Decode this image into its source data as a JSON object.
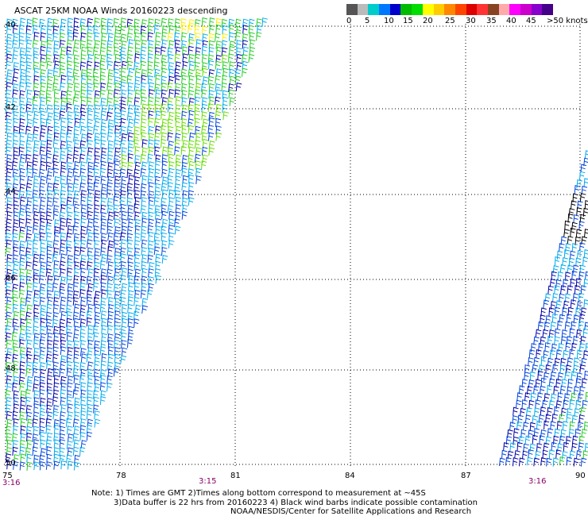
{
  "title": "ASCAT 25KM NOAA Winds 20160223 descending",
  "colorbar": {
    "colors": [
      "#555555",
      "#bbbbbb",
      "#00cccc",
      "#0077ff",
      "#0000cc",
      "#00bb00",
      "#00dd00",
      "#ffff00",
      "#ffcc00",
      "#ff8800",
      "#ff4400",
      "#dd0000",
      "#ff3333",
      "#884422",
      "#ffaaaa",
      "#ff00ff",
      "#cc00cc",
      "#8800cc",
      "#440088"
    ],
    "labels": [
      "0",
      "5",
      "10",
      "15",
      "20",
      "25",
      "30",
      "35",
      "40",
      "45",
      ">50 knots"
    ]
  },
  "map": {
    "lat_labels": [
      "40",
      "42",
      "44",
      "46",
      "48",
      "50"
    ],
    "lon_labels": [
      "75",
      "78",
      "81",
      "84",
      "87",
      "90"
    ],
    "time_labels": [
      "3:16",
      "3:15",
      "3:16"
    ]
  },
  "wind_barb_colors": {
    "light": "#00aaee",
    "medium": "#0044dd",
    "dark": "#0000aa",
    "green": "#22cc22",
    "lime": "#66dd00",
    "yellow": "#ffee00",
    "contam": "#000000"
  },
  "notes": {
    "line1": "Note: 1) Times are GMT 2)Times along bottom correspond to measurement at ~45S",
    "line2": "3)Data buffer is 22 hrs from 20160223 4) Black wind barbs indicate possible contamination",
    "line3": "NOAA/NESDIS/Center for Satellite Applications and Research"
  }
}
